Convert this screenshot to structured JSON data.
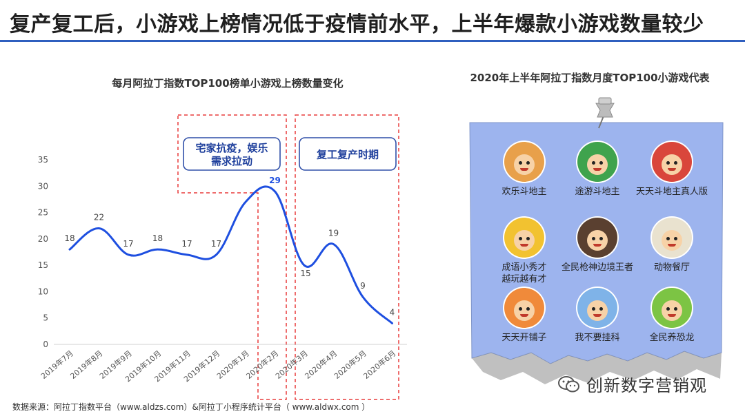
{
  "headline": "复产复工后，小游戏上榜情况低于疫情前水平，上半年爆款小游戏数量较少",
  "colors": {
    "accent": "#2f5fbf",
    "line": "#1e4fe0",
    "annotation": "#e83b3b",
    "panel": "#9db4ee"
  },
  "chart_data": {
    "type": "line",
    "title": "每月阿拉丁指数TOP100榜单小游戏上榜数量变化",
    "xlabel": "",
    "ylabel": "",
    "categories": [
      "2019年7月",
      "2019年8月",
      "2019年9月",
      "2019年10月",
      "2019年11月",
      "2019年12月",
      "2020年1月",
      "2020年2月",
      "2020年3月",
      "2020年4月",
      "2020年5月",
      "2020年6月"
    ],
    "values": [
      18,
      22,
      17,
      18,
      17,
      17,
      null,
      29,
      15,
      19,
      9,
      4
    ],
    "data_labels": [
      "18",
      "22",
      "17",
      "18",
      "17",
      "17",
      "",
      "29",
      "15",
      "19",
      "9",
      "4"
    ],
    "ylim": [
      0,
      35
    ],
    "yticks": [
      0,
      5,
      10,
      15,
      20,
      25,
      30,
      35
    ],
    "grid": false,
    "smooth": true,
    "annotations": [
      {
        "text_lines": [
          "宅家抗疫，娱乐",
          "需求拉动"
        ]
      },
      {
        "text_lines": [
          "复工复产时期"
        ]
      }
    ]
  },
  "right_panel": {
    "title": "2020年上半年阿拉丁指数月度TOP100小游戏代表",
    "games": [
      {
        "lines": [
          "欢乐斗地主"
        ],
        "color": "#e8a04a",
        "icon": "doudizhu-avatar-icon"
      },
      {
        "lines": [
          "途游斗地主"
        ],
        "color": "#3fa34d",
        "icon": "tuyou-avatar-icon"
      },
      {
        "lines": [
          "天天斗地主真人版"
        ],
        "color": "#d9463b",
        "icon": "tiantian-avatar-icon"
      },
      {
        "lines": [
          "成语小秀才",
          "越玩越有才"
        ],
        "color": "#f2c230",
        "icon": "xiucai-avatar-icon"
      },
      {
        "lines": [
          "全民枪神边境王者"
        ],
        "color": "#5a4030",
        "icon": "gunner-avatar-icon"
      },
      {
        "lines": [
          "动物餐厅"
        ],
        "color": "#e9e2cf",
        "icon": "cat-avatar-icon"
      },
      {
        "lines": [
          "天天开铺子"
        ],
        "color": "#f08a3a",
        "icon": "shop-avatar-icon"
      },
      {
        "lines": [
          "我不要挂科"
        ],
        "color": "#7fb3e8",
        "icon": "student-avatar-icon"
      },
      {
        "lines": [
          "全民养恐龙"
        ],
        "color": "#7cc444",
        "icon": "dinosaur-avatar-icon"
      }
    ]
  },
  "source": "数据来源：阿拉丁指数平台（www.aldzs.com）&阿拉丁小程序统计平台（ www.aldwx.com ）",
  "watermark": "创新数字营销观"
}
